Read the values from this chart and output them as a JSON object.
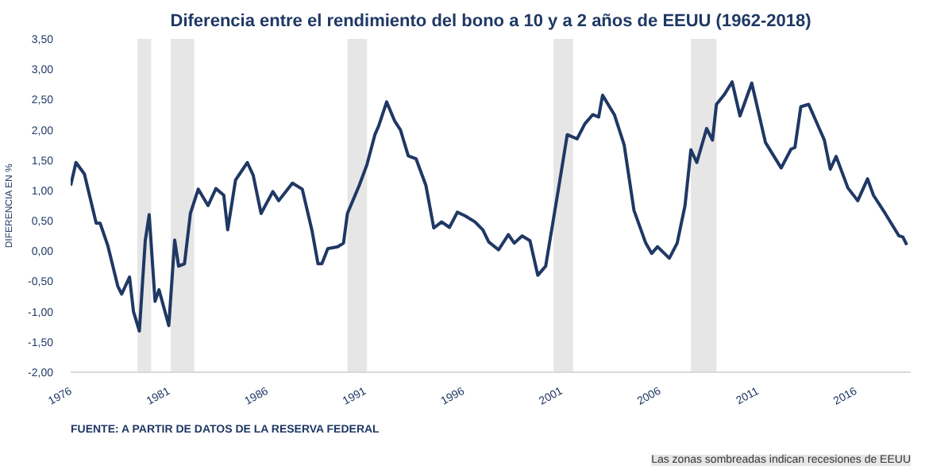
{
  "chart_data": {
    "type": "line",
    "title": "Diferencia entre el rendimiento del bono a 10 y a 2 años de EEUU (1962-2018)",
    "ylabel": "DIFERENCIA EN %",
    "annotations": [
      "FUENTE: A PARTIR DE DATOS DE LA RESERVA FEDERAL",
      "Las zonas sombreadas indican recesiones de EEUU"
    ],
    "xlim": [
      1976,
      2018.8
    ],
    "xticks": [
      1976,
      1981,
      1986,
      1991,
      1996,
      2001,
      2006,
      2011,
      2016
    ],
    "ylim": [
      -2,
      3.5
    ],
    "yticks": [
      {
        "value": -2,
        "label": "-2,00"
      },
      {
        "value": -1.5,
        "label": "-1,50"
      },
      {
        "value": -1,
        "label": "-1,00"
      },
      {
        "value": -0.5,
        "label": "-0,50"
      },
      {
        "value": 0,
        "label": "0,00"
      },
      {
        "value": 0.5,
        "label": "0,50"
      },
      {
        "value": 1,
        "label": "1,00"
      },
      {
        "value": 1.5,
        "label": "1,50"
      },
      {
        "value": 2,
        "label": "2,00"
      },
      {
        "value": 2.5,
        "label": "2,50"
      },
      {
        "value": 3,
        "label": "3,00"
      },
      {
        "value": 3.5,
        "label": "3,50"
      }
    ],
    "grid": false,
    "line_style": "solid",
    "marker": "none",
    "bands": [
      {
        "axis": "x",
        "from": 1979.4,
        "to": 1980.1,
        "color": "#e6e6e6"
      },
      {
        "axis": "x",
        "from": 1981.1,
        "to": 1982.3,
        "color": "#e6e6e6"
      },
      {
        "axis": "x",
        "from": 1990.1,
        "to": 1991.1,
        "color": "#e6e6e6"
      },
      {
        "axis": "x",
        "from": 2000.6,
        "to": 2001.6,
        "color": "#e6e6e6"
      },
      {
        "axis": "x",
        "from": 2007.6,
        "to": 2008.9,
        "color": "#e6e6e6"
      }
    ],
    "series": [
      {
        "color": "#1f3864",
        "x": [
          1976.0,
          1976.27,
          1976.7,
          1977.3,
          1977.5,
          1977.9,
          1978.4,
          1978.6,
          1979.0,
          1979.2,
          1979.5,
          1979.8,
          1980.0,
          1980.3,
          1980.5,
          1981.0,
          1981.3,
          1981.5,
          1981.8,
          1982.1,
          1982.5,
          1983.0,
          1983.4,
          1983.8,
          1984.0,
          1984.4,
          1985.0,
          1985.3,
          1985.7,
          1986.3,
          1986.6,
          1987.3,
          1987.8,
          1988.3,
          1988.6,
          1988.8,
          1989.1,
          1989.6,
          1989.9,
          1990.1,
          1990.7,
          1991.1,
          1991.5,
          1991.7,
          1992.1,
          1992.5,
          1992.8,
          1993.2,
          1993.6,
          1994.1,
          1994.5,
          1994.9,
          1995.3,
          1995.7,
          1996.1,
          1996.6,
          1997.0,
          1997.3,
          1997.8,
          1998.3,
          1998.6,
          1999.0,
          1999.4,
          1999.8,
          2000.2,
          2000.9,
          2001.3,
          2001.8,
          2002.2,
          2002.6,
          2002.9,
          2003.1,
          2003.7,
          2004.2,
          2004.7,
          2005.3,
          2005.6,
          2005.9,
          2006.5,
          2006.9,
          2007.3,
          2007.6,
          2007.9,
          2008.4,
          2008.7,
          2008.9,
          2009.3,
          2009.7,
          2010.1,
          2010.7,
          2011.4,
          2012.2,
          2012.7,
          2012.9,
          2013.2,
          2013.6,
          2014.4,
          2014.7,
          2015.0,
          2015.6,
          2016.1,
          2016.6,
          2016.9,
          2017.5,
          2018.2,
          2018.4,
          2018.6
        ],
        "values": [
          1.08,
          1.46,
          1.27,
          0.46,
          0.46,
          0.08,
          -0.58,
          -0.71,
          -0.43,
          -1.0,
          -1.32,
          0.17,
          0.6,
          -0.83,
          -0.64,
          -1.23,
          0.18,
          -0.25,
          -0.21,
          0.62,
          1.02,
          0.75,
          1.03,
          0.92,
          0.35,
          1.17,
          1.46,
          1.25,
          0.62,
          0.98,
          0.83,
          1.12,
          1.02,
          0.33,
          -0.21,
          -0.21,
          0.04,
          0.07,
          0.13,
          0.62,
          1.08,
          1.43,
          1.92,
          2.07,
          2.46,
          2.15,
          2.0,
          1.57,
          1.52,
          1.08,
          0.38,
          0.48,
          0.39,
          0.64,
          0.58,
          0.48,
          0.35,
          0.15,
          0.02,
          0.27,
          0.13,
          0.25,
          0.17,
          -0.4,
          -0.25,
          1.12,
          1.92,
          1.85,
          2.1,
          2.25,
          2.21,
          2.57,
          2.25,
          1.75,
          0.67,
          0.13,
          -0.04,
          0.07,
          -0.12,
          0.13,
          0.75,
          1.67,
          1.46,
          2.02,
          1.83,
          2.42,
          2.58,
          2.79,
          2.23,
          2.77,
          1.79,
          1.37,
          1.68,
          1.71,
          2.38,
          2.42,
          1.83,
          1.35,
          1.56,
          1.04,
          0.83,
          1.19,
          0.92,
          0.62,
          0.25,
          0.23,
          0.1
        ]
      }
    ]
  }
}
